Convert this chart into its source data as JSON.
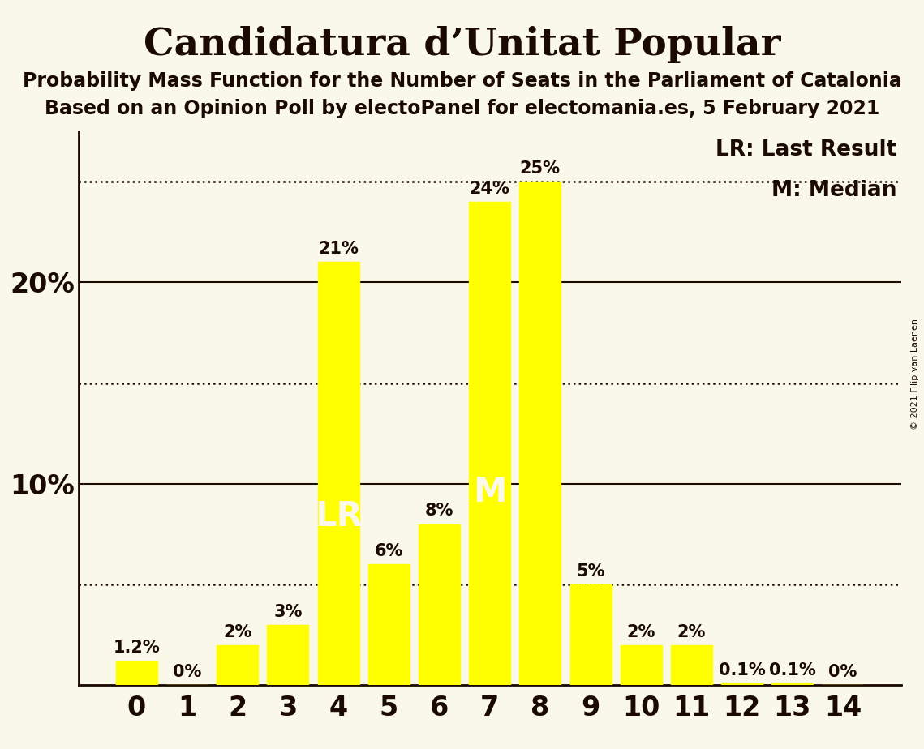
{
  "title": "Candidatura d’Unitat Popular",
  "subtitle1": "Probability Mass Function for the Number of Seats in the Parliament of Catalonia",
  "subtitle2": "Based on an Opinion Poll by electoPanel for electomania.es, 5 February 2021",
  "copyright": "© 2021 Filip van Laenen",
  "categories": [
    0,
    1,
    2,
    3,
    4,
    5,
    6,
    7,
    8,
    9,
    10,
    11,
    12,
    13,
    14
  ],
  "values": [
    1.2,
    0.0,
    2.0,
    3.0,
    21.0,
    6.0,
    8.0,
    24.0,
    25.0,
    5.0,
    2.0,
    2.0,
    0.1,
    0.1,
    0.0
  ],
  "bar_color": "#ffff00",
  "background_color": "#faf8e8",
  "text_color": "#1a0a00",
  "solid_lines": [
    10,
    20
  ],
  "dotted_lines": [
    25.0,
    15.0,
    5.0
  ],
  "ytick_vals": [
    10,
    20
  ],
  "ytick_labels": [
    "10%",
    "20%"
  ],
  "ylim": [
    0,
    27.5
  ],
  "lr_bar": 4,
  "median_bar": 7,
  "lr_label": "LR",
  "median_label": "M",
  "lr_legend": "LR: Last Result",
  "median_legend": "M: Median",
  "title_fontsize": 34,
  "subtitle_fontsize": 17,
  "axis_tick_fontsize": 24,
  "bar_label_fontsize": 15,
  "bar_annotation_fontsize": 30,
  "legend_fontsize": 19,
  "ytick_fontsize": 24
}
